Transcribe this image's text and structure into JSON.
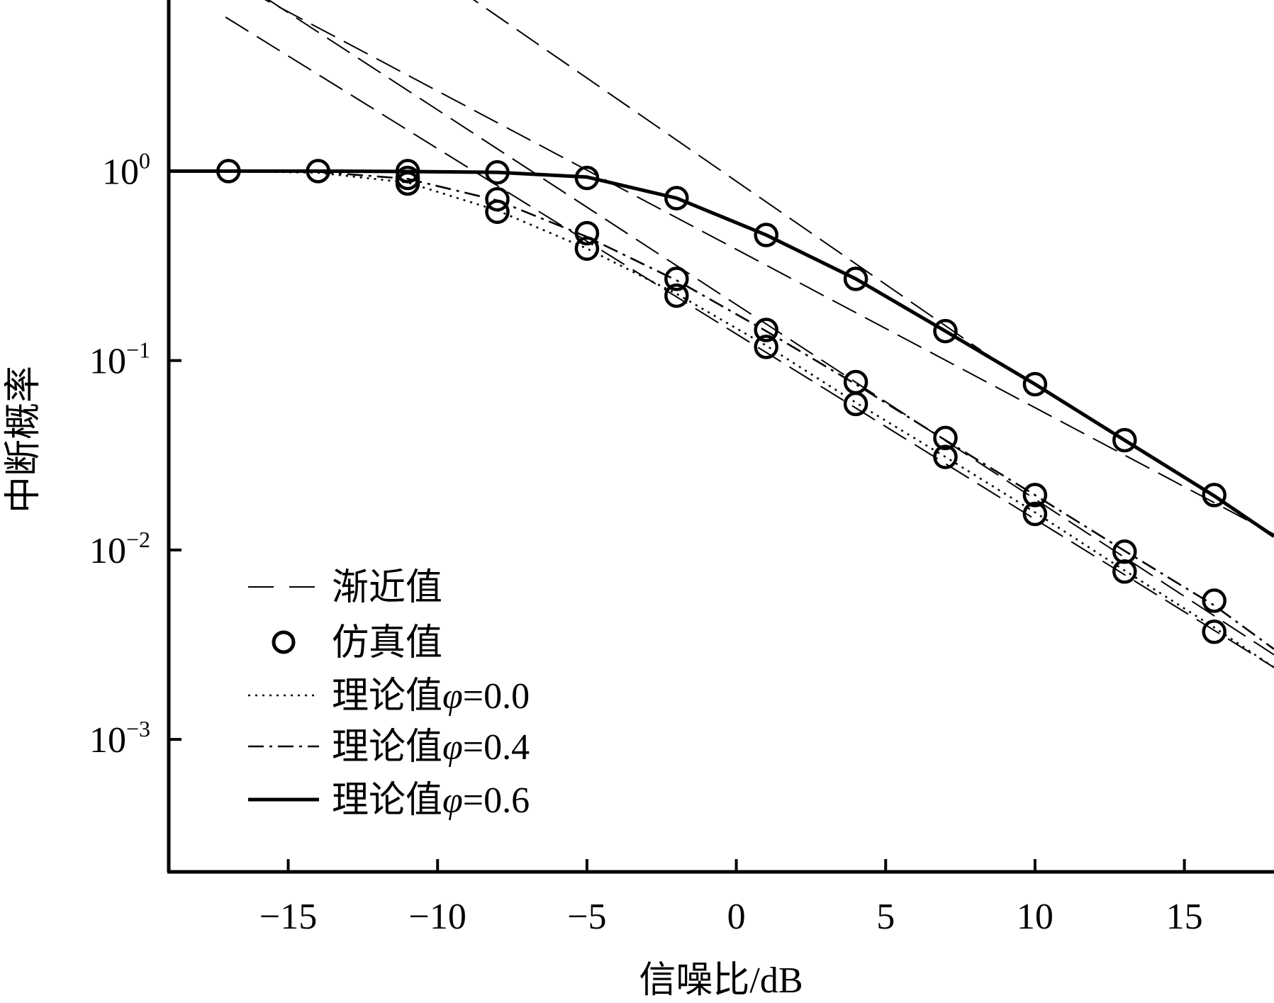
{
  "chart_data": {
    "type": "line",
    "title": "",
    "xlabel": "信噪比/dB",
    "ylabel": "中断概率",
    "x_scale": "linear",
    "y_scale": "log",
    "xlim": [
      -19,
      18
    ],
    "ylim": [
      0.0002,
      8
    ],
    "x_ticks": [
      -15,
      -10,
      -5,
      0,
      5,
      10,
      15
    ],
    "x_tick_labels": [
      "−15",
      "−10",
      "−5",
      "0",
      "5",
      "10",
      "15"
    ],
    "y_ticks": [
      {
        "value": 1,
        "base": "10",
        "exp": "0"
      },
      {
        "value": 0.1,
        "base": "10",
        "exp": "−1"
      },
      {
        "value": 0.01,
        "base": "10",
        "exp": "−2"
      },
      {
        "value": 0.001,
        "base": "10",
        "exp": "−3"
      }
    ],
    "grid": false,
    "legend_position": "bottom-left",
    "legend": [
      {
        "key": "asymptote",
        "label": "渐近值",
        "style": "dashed"
      },
      {
        "key": "simulation",
        "label": "仿真值",
        "style": "circle"
      },
      {
        "key": "theory_0_0",
        "label": "理论值",
        "phi": "φ",
        "suffix": "=0.0",
        "style": "dotted"
      },
      {
        "key": "theory_0_4",
        "label": "理论值",
        "phi": "φ",
        "suffix": "=0.4",
        "style": "dashdot"
      },
      {
        "key": "theory_0_6",
        "label": "理论值",
        "phi": "φ",
        "suffix": "=0.6",
        "style": "solid"
      }
    ],
    "series": [
      {
        "key": "theory_0_0",
        "style": "dotted",
        "x": [
          -19,
          -17,
          -14,
          -11,
          -8,
          -5,
          -2,
          1,
          4,
          7,
          10,
          13,
          16,
          18
        ],
        "y": [
          1.0,
          1.0,
          0.98,
          0.87,
          0.62,
          0.39,
          0.225,
          0.12,
          0.06,
          0.031,
          0.0158,
          0.0078,
          0.0039,
          0.0024
        ]
      },
      {
        "key": "theory_0_4",
        "style": "dashdot",
        "x": [
          -19,
          -17,
          -14,
          -11,
          -8,
          -5,
          -2,
          1,
          4,
          7,
          10,
          13,
          16,
          18
        ],
        "y": [
          1.0,
          1.0,
          0.99,
          0.91,
          0.7,
          0.45,
          0.265,
          0.143,
          0.075,
          0.038,
          0.0195,
          0.0099,
          0.0051,
          0.003
        ]
      },
      {
        "key": "theory_0_6",
        "style": "solid",
        "x": [
          -19,
          -17,
          -14,
          -11,
          -8,
          -5,
          -2,
          1,
          4,
          7,
          10,
          13,
          16,
          18
        ],
        "y": [
          1.0,
          1.0,
          1.0,
          0.995,
          0.985,
          0.93,
          0.72,
          0.46,
          0.27,
          0.143,
          0.075,
          0.038,
          0.0193,
          0.0118
        ]
      },
      {
        "key": "simulation",
        "style": "circle",
        "x": [
          -17,
          -14,
          -11,
          -8,
          -5,
          -2,
          1,
          4,
          7,
          10,
          13,
          16,
          -11,
          -8,
          -5,
          -2,
          1,
          4,
          7,
          10,
          13,
          16,
          -11,
          -8,
          -5,
          -2,
          1,
          4,
          7,
          10,
          13,
          16
        ],
        "y": [
          1.0,
          1.0,
          1.0,
          0.985,
          0.92,
          0.72,
          0.46,
          0.27,
          0.143,
          0.075,
          0.038,
          0.0195,
          0.92,
          0.71,
          0.47,
          0.27,
          0.145,
          0.077,
          0.039,
          0.0195,
          0.0098,
          0.0054,
          0.86,
          0.61,
          0.39,
          0.22,
          0.118,
          0.059,
          0.031,
          0.0155,
          0.0077,
          0.0037
        ]
      },
      {
        "key": "asymptote",
        "style": "dashed",
        "lines": [
          {
            "x": [
              -17.5,
              18
            ],
            "y": [
              11.2,
              0.0121
            ]
          },
          {
            "x": [
              -16.8,
              18
            ],
            "y": [
              10.5,
              0.0028
            ]
          },
          {
            "x": [
              -17.1,
              18
            ],
            "y": [
              6.5,
              0.0024
            ]
          },
          {
            "x": [
              -10.4,
              8.2
            ],
            "y": [
              12.0,
              0.113
            ]
          }
        ]
      }
    ]
  }
}
